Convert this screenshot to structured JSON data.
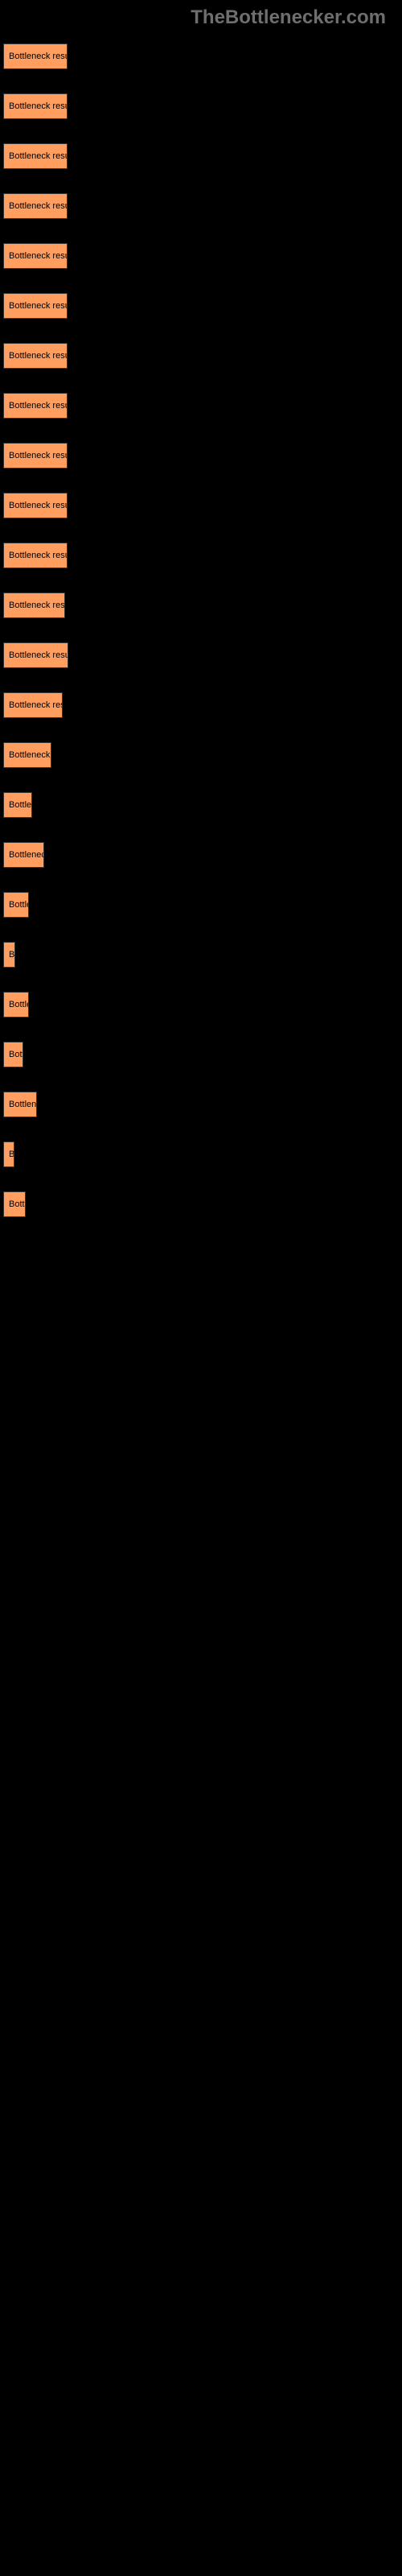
{
  "header": {
    "title": "TheBottlenecker.com"
  },
  "buttons": [
    {
      "label": "Bottleneck result",
      "width": 80
    },
    {
      "label": "Bottleneck result",
      "width": 80
    },
    {
      "label": "Bottleneck result",
      "width": 80
    },
    {
      "label": "Bottleneck result",
      "width": 80
    },
    {
      "label": "Bottleneck result",
      "width": 80
    },
    {
      "label": "Bottleneck result",
      "width": 80
    },
    {
      "label": "Bottleneck result",
      "width": 80
    },
    {
      "label": "Bottleneck result",
      "width": 80
    },
    {
      "label": "Bottleneck result",
      "width": 80
    },
    {
      "label": "Bottleneck result",
      "width": 80
    },
    {
      "label": "Bottleneck result",
      "width": 80
    },
    {
      "label": "Bottleneck resul",
      "width": 77
    },
    {
      "label": "Bottleneck result",
      "width": 81
    },
    {
      "label": "Bottleneck resu",
      "width": 74
    },
    {
      "label": "Bottleneck r",
      "width": 60
    },
    {
      "label": "Bottlen",
      "width": 36
    },
    {
      "label": "Bottleneck",
      "width": 51
    },
    {
      "label": "Bottle",
      "width": 32
    },
    {
      "label": "Bo",
      "width": 15
    },
    {
      "label": "Bottle",
      "width": 32
    },
    {
      "label": "Bott",
      "width": 25
    },
    {
      "label": "Bottlene",
      "width": 42
    },
    {
      "label": "B",
      "width": 13
    },
    {
      "label": "Bottl",
      "width": 28
    }
  ],
  "colors": {
    "background": "#000000",
    "button_bg": "#ff9e5e",
    "header_text": "#6e6e6e"
  }
}
